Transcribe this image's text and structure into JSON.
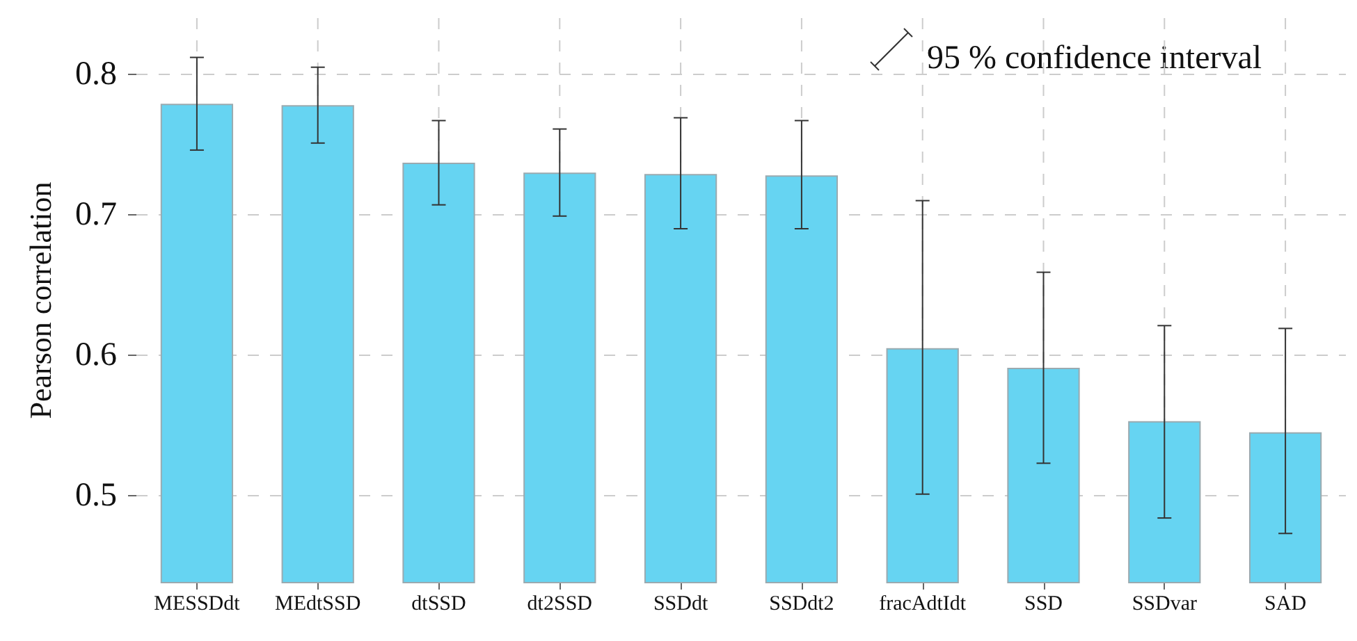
{
  "chart_data": {
    "type": "bar",
    "ylabel": "Pearson correlation",
    "annotations": [
      "95 % confidence interval"
    ],
    "categories": [
      "MESSDdt",
      "MEdtSSD",
      "dtSSD",
      "dt2SSD",
      "SSDdt",
      "SSDdt2",
      "fracAdtIdt",
      "SSD",
      "SSDvar",
      "SAD"
    ],
    "values": [
      0.779,
      0.778,
      0.737,
      0.73,
      0.729,
      0.728,
      0.605,
      0.591,
      0.553,
      0.545
    ],
    "errors": [
      [
        0.746,
        0.812
      ],
      [
        0.751,
        0.805
      ],
      [
        0.707,
        0.767
      ],
      [
        0.699,
        0.761
      ],
      [
        0.69,
        0.769
      ],
      [
        0.69,
        0.767
      ],
      [
        0.501,
        0.71
      ],
      [
        0.523,
        0.659
      ],
      [
        0.484,
        0.621
      ],
      [
        0.473,
        0.619
      ]
    ],
    "color": "#66d4f2",
    "ylim": [
      0.438,
      0.84
    ],
    "yticks": [
      0.5,
      0.6,
      0.7,
      0.8
    ],
    "grid": true
  }
}
